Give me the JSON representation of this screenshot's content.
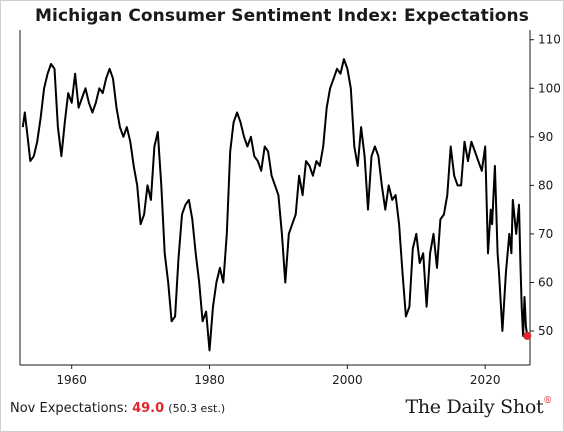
{
  "title": "Michigan Consumer Sentiment Index: Expectations",
  "footer": {
    "label": "Nov Expectations: ",
    "value": "49.0",
    "estimate": "(50.3 est.)"
  },
  "brand": {
    "name": "The Daily Shot",
    "mark": "®"
  },
  "colors": {
    "line": "#000000",
    "highlight": "#e0262b"
  },
  "chart_data": {
    "type": "line",
    "title": "Michigan Consumer Sentiment Index: Expectations",
    "xlabel": "",
    "ylabel": "",
    "xlim": [
      1952.5,
      2026.5
    ],
    "ylim": [
      43,
      112
    ],
    "x_ticks": [
      1960,
      1980,
      2000,
      2020
    ],
    "y_ticks": [
      50,
      60,
      70,
      80,
      90,
      100,
      110
    ],
    "y_axis_position": "right",
    "grid": false,
    "legend": "none",
    "series": [
      {
        "values": [
          [
            1952.9,
            92
          ],
          [
            1953.2,
            95
          ],
          [
            1953.6,
            90
          ],
          [
            1954.0,
            85
          ],
          [
            1954.5,
            86
          ],
          [
            1955.0,
            89
          ],
          [
            1955.5,
            94
          ],
          [
            1956.0,
            100
          ],
          [
            1956.5,
            103
          ],
          [
            1957.0,
            105
          ],
          [
            1957.5,
            104
          ],
          [
            1958.0,
            92
          ],
          [
            1958.5,
            86
          ],
          [
            1959.0,
            93
          ],
          [
            1959.5,
            99
          ],
          [
            1960.0,
            97
          ],
          [
            1960.5,
            103
          ],
          [
            1961.0,
            96
          ],
          [
            1961.5,
            98
          ],
          [
            1962.0,
            100
          ],
          [
            1962.5,
            97
          ],
          [
            1963.0,
            95
          ],
          [
            1963.5,
            97
          ],
          [
            1964.0,
            100
          ],
          [
            1964.5,
            99
          ],
          [
            1965.0,
            102
          ],
          [
            1965.5,
            104
          ],
          [
            1966.0,
            102
          ],
          [
            1966.5,
            96
          ],
          [
            1967.0,
            92
          ],
          [
            1967.5,
            90
          ],
          [
            1968.0,
            92
          ],
          [
            1968.5,
            89
          ],
          [
            1969.0,
            84
          ],
          [
            1969.5,
            80
          ],
          [
            1970.0,
            72
          ],
          [
            1970.5,
            74
          ],
          [
            1971.0,
            80
          ],
          [
            1971.5,
            77
          ],
          [
            1972.0,
            88
          ],
          [
            1972.5,
            91
          ],
          [
            1973.0,
            80
          ],
          [
            1973.5,
            66
          ],
          [
            1974.0,
            60
          ],
          [
            1974.5,
            52
          ],
          [
            1975.0,
            53
          ],
          [
            1975.5,
            65
          ],
          [
            1976.0,
            74
          ],
          [
            1976.5,
            76
          ],
          [
            1977.0,
            77
          ],
          [
            1977.5,
            73
          ],
          [
            1978.0,
            66
          ],
          [
            1978.5,
            60
          ],
          [
            1979.0,
            52
          ],
          [
            1979.5,
            54
          ],
          [
            1980.0,
            46
          ],
          [
            1980.5,
            55
          ],
          [
            1981.0,
            60
          ],
          [
            1981.5,
            63
          ],
          [
            1982.0,
            60
          ],
          [
            1982.5,
            70
          ],
          [
            1983.0,
            87
          ],
          [
            1983.5,
            93
          ],
          [
            1984.0,
            95
          ],
          [
            1984.5,
            93
          ],
          [
            1985.0,
            90
          ],
          [
            1985.5,
            88
          ],
          [
            1986.0,
            90
          ],
          [
            1986.5,
            86
          ],
          [
            1987.0,
            85
          ],
          [
            1987.5,
            83
          ],
          [
            1988.0,
            88
          ],
          [
            1988.5,
            87
          ],
          [
            1989.0,
            82
          ],
          [
            1989.5,
            80
          ],
          [
            1990.0,
            78
          ],
          [
            1990.5,
            70
          ],
          [
            1991.0,
            60
          ],
          [
            1991.5,
            70
          ],
          [
            1992.0,
            72
          ],
          [
            1992.5,
            74
          ],
          [
            1993.0,
            82
          ],
          [
            1993.5,
            78
          ],
          [
            1994.0,
            85
          ],
          [
            1994.5,
            84
          ],
          [
            1995.0,
            82
          ],
          [
            1995.5,
            85
          ],
          [
            1996.0,
            84
          ],
          [
            1996.5,
            88
          ],
          [
            1997.0,
            96
          ],
          [
            1997.5,
            100
          ],
          [
            1998.0,
            102
          ],
          [
            1998.5,
            104
          ],
          [
            1999.0,
            103
          ],
          [
            1999.5,
            106
          ],
          [
            2000.0,
            104
          ],
          [
            2000.5,
            100
          ],
          [
            2001.0,
            88
          ],
          [
            2001.5,
            84
          ],
          [
            2002.0,
            92
          ],
          [
            2002.5,
            86
          ],
          [
            2003.0,
            75
          ],
          [
            2003.5,
            86
          ],
          [
            2004.0,
            88
          ],
          [
            2004.5,
            86
          ],
          [
            2005.0,
            80
          ],
          [
            2005.5,
            75
          ],
          [
            2006.0,
            80
          ],
          [
            2006.5,
            77
          ],
          [
            2007.0,
            78
          ],
          [
            2007.5,
            72
          ],
          [
            2008.0,
            62
          ],
          [
            2008.5,
            53
          ],
          [
            2009.0,
            55
          ],
          [
            2009.5,
            67
          ],
          [
            2010.0,
            70
          ],
          [
            2010.5,
            64
          ],
          [
            2011.0,
            66
          ],
          [
            2011.5,
            55
          ],
          [
            2012.0,
            66
          ],
          [
            2012.5,
            70
          ],
          [
            2013.0,
            63
          ],
          [
            2013.5,
            73
          ],
          [
            2014.0,
            74
          ],
          [
            2014.5,
            78
          ],
          [
            2015.0,
            88
          ],
          [
            2015.5,
            82
          ],
          [
            2016.0,
            80
          ],
          [
            2016.5,
            80
          ],
          [
            2017.0,
            89
          ],
          [
            2017.5,
            85
          ],
          [
            2018.0,
            89
          ],
          [
            2018.5,
            87
          ],
          [
            2019.0,
            85
          ],
          [
            2019.5,
            83
          ],
          [
            2020.0,
            88
          ],
          [
            2020.4,
            66
          ],
          [
            2020.8,
            75
          ],
          [
            2021.0,
            72
          ],
          [
            2021.4,
            84
          ],
          [
            2021.8,
            66
          ],
          [
            2022.0,
            62
          ],
          [
            2022.5,
            50
          ],
          [
            2023.0,
            62
          ],
          [
            2023.5,
            70
          ],
          [
            2023.8,
            66
          ],
          [
            2024.0,
            77
          ],
          [
            2024.5,
            70
          ],
          [
            2024.9,
            76
          ],
          [
            2025.1,
            64
          ],
          [
            2025.3,
            55
          ],
          [
            2025.5,
            49
          ],
          [
            2025.7,
            57
          ],
          [
            2025.9,
            51
          ],
          [
            2026.1,
            49
          ]
        ]
      }
    ],
    "highlight_point": [
      2026.1,
      49.0
    ]
  }
}
